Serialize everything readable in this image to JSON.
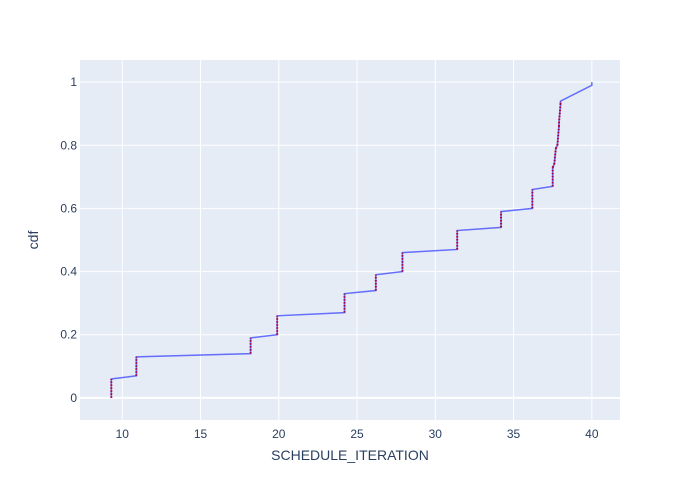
{
  "chart_data": {
    "type": "line",
    "title": "",
    "xlabel": "SCHEDULE_ITERATION",
    "ylabel": "cdf",
    "xlim": [
      7.3,
      41.8
    ],
    "ylim": [
      -0.07,
      1.07
    ],
    "xticks": [
      10,
      15,
      20,
      25,
      30,
      35,
      40
    ],
    "yticks": [
      0,
      0.2,
      0.4,
      0.6,
      0.8,
      1
    ],
    "xtick_labels": [
      "10",
      "15",
      "20",
      "25",
      "30",
      "35",
      "40"
    ],
    "ytick_labels": [
      "0",
      "0.2",
      "0.4",
      "0.6",
      "0.8",
      "1"
    ],
    "grid": true,
    "line_color": "#636efa",
    "marker_color": "#b2003e",
    "plot_bg": "#e5ecf6",
    "grid_color": "#ffffff",
    "series": [
      {
        "x": [
          9.3,
          9.3,
          10.9,
          10.9,
          18.2,
          18.2,
          19.9,
          19.9,
          24.2,
          24.2,
          26.2,
          26.2,
          27.9,
          27.9,
          31.4,
          31.4,
          34.2,
          34.2,
          36.2,
          36.2,
          37.5,
          37.5,
          37.6,
          37.7,
          37.8,
          37.9,
          37.9,
          38.0,
          38.0,
          40.0
        ],
        "y": [
          0.0,
          0.06,
          0.07,
          0.13,
          0.14,
          0.19,
          0.2,
          0.26,
          0.27,
          0.33,
          0.34,
          0.39,
          0.4,
          0.46,
          0.47,
          0.53,
          0.54,
          0.59,
          0.6,
          0.66,
          0.67,
          0.73,
          0.74,
          0.79,
          0.8,
          0.86,
          0.87,
          0.93,
          0.94,
          0.99
        ]
      }
    ],
    "final_point": [
      40.0,
      1.0
    ]
  }
}
